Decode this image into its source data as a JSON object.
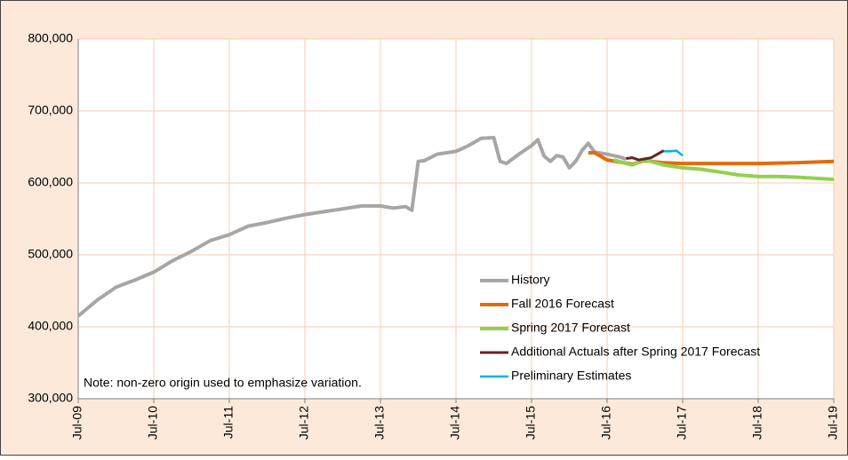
{
  "chart_data": {
    "type": "line",
    "note": "Note: non-zero origin used to emphasize variation.",
    "xlim": [
      "2009-07",
      "2019-07"
    ],
    "xticks": [
      {
        "value": "2009-07",
        "label": "Jul-09"
      },
      {
        "value": "2010-07",
        "label": "Jul-10"
      },
      {
        "value": "2011-07",
        "label": "Jul-11"
      },
      {
        "value": "2012-07",
        "label": "Jul-12"
      },
      {
        "value": "2013-07",
        "label": "Jul-13"
      },
      {
        "value": "2014-07",
        "label": "Jul-14"
      },
      {
        "value": "2015-07",
        "label": "Jul-15"
      },
      {
        "value": "2016-07",
        "label": "Jul-16"
      },
      {
        "value": "2017-07",
        "label": "Jul-17"
      },
      {
        "value": "2018-07",
        "label": "Jul-18"
      },
      {
        "value": "2019-07",
        "label": "Jul-19"
      }
    ],
    "ylim": [
      300000,
      800000
    ],
    "yticks": [
      {
        "value": 300000,
        "label": "300,000"
      },
      {
        "value": 400000,
        "label": "400,000"
      },
      {
        "value": 500000,
        "label": "500,000"
      },
      {
        "value": 600000,
        "label": "600,000"
      },
      {
        "value": 700000,
        "label": "700,000"
      },
      {
        "value": 800000,
        "label": "800,000"
      }
    ],
    "grid": true,
    "legend": "bottom-right",
    "series": [
      {
        "name": "History",
        "color": "#a6a6a6",
        "x": [
          "2009-07",
          "2009-10",
          "2010-01",
          "2010-04",
          "2010-07",
          "2010-10",
          "2011-01",
          "2011-04",
          "2011-07",
          "2011-10",
          "2012-01",
          "2012-04",
          "2012-07",
          "2012-10",
          "2013-01",
          "2013-04",
          "2013-07",
          "2013-09",
          "2013-11",
          "2013-12",
          "2014-01",
          "2014-02",
          "2014-04",
          "2014-07",
          "2014-09",
          "2014-11",
          "2015-01",
          "2015-02",
          "2015-03",
          "2015-05",
          "2015-07",
          "2015-08",
          "2015-09",
          "2015-10",
          "2015-11",
          "2015-12",
          "2016-01",
          "2016-02",
          "2016-03",
          "2016-04",
          "2016-05",
          "2016-07",
          "2016-09",
          "2016-10"
        ],
        "values": [
          415000,
          437000,
          455000,
          465000,
          476000,
          492000,
          505000,
          520000,
          528000,
          540000,
          545000,
          551000,
          556000,
          560000,
          564000,
          568000,
          568000,
          565000,
          567000,
          562000,
          630000,
          631000,
          640000,
          644000,
          652000,
          662000,
          663000,
          630000,
          627000,
          640000,
          652000,
          660000,
          637000,
          630000,
          638000,
          636000,
          621000,
          630000,
          645000,
          655000,
          643000,
          640000,
          636000,
          633000
        ]
      },
      {
        "name": "Fall 2016 Forecast",
        "color": "#e36c0a",
        "x": [
          "2016-04",
          "2016-05",
          "2016-07",
          "2016-09",
          "2016-11",
          "2017-01",
          "2017-04",
          "2017-07",
          "2018-01",
          "2018-07",
          "2019-01",
          "2019-07"
        ],
        "values": [
          642000,
          642000,
          632000,
          629000,
          626000,
          631000,
          628000,
          627000,
          627000,
          627000,
          628000,
          630000
        ]
      },
      {
        "name": "Spring 2017 Forecast",
        "color": "#92d050",
        "x": [
          "2016-08",
          "2016-10",
          "2016-11",
          "2017-01",
          "2017-04",
          "2017-07",
          "2017-10",
          "2018-01",
          "2018-04",
          "2018-07",
          "2018-10",
          "2019-01",
          "2019-07"
        ],
        "values": [
          632000,
          627000,
          625000,
          632000,
          625000,
          621000,
          619000,
          615000,
          611000,
          609000,
          609000,
          608000,
          605000
        ]
      },
      {
        "name": "Additional Actuals after Spring 2017 Forecast",
        "color": "#632523",
        "x": [
          "2016-10",
          "2016-11",
          "2016-12",
          "2017-02",
          "2017-03",
          "2017-04"
        ],
        "values": [
          634000,
          635000,
          632000,
          635000,
          640000,
          645000
        ]
      },
      {
        "name": "Preliminary Estimates",
        "color": "#00b0f0",
        "x": [
          "2017-04",
          "2017-05",
          "2017-06",
          "2017-07"
        ],
        "values": [
          644000,
          644000,
          645000,
          638000
        ]
      }
    ]
  }
}
